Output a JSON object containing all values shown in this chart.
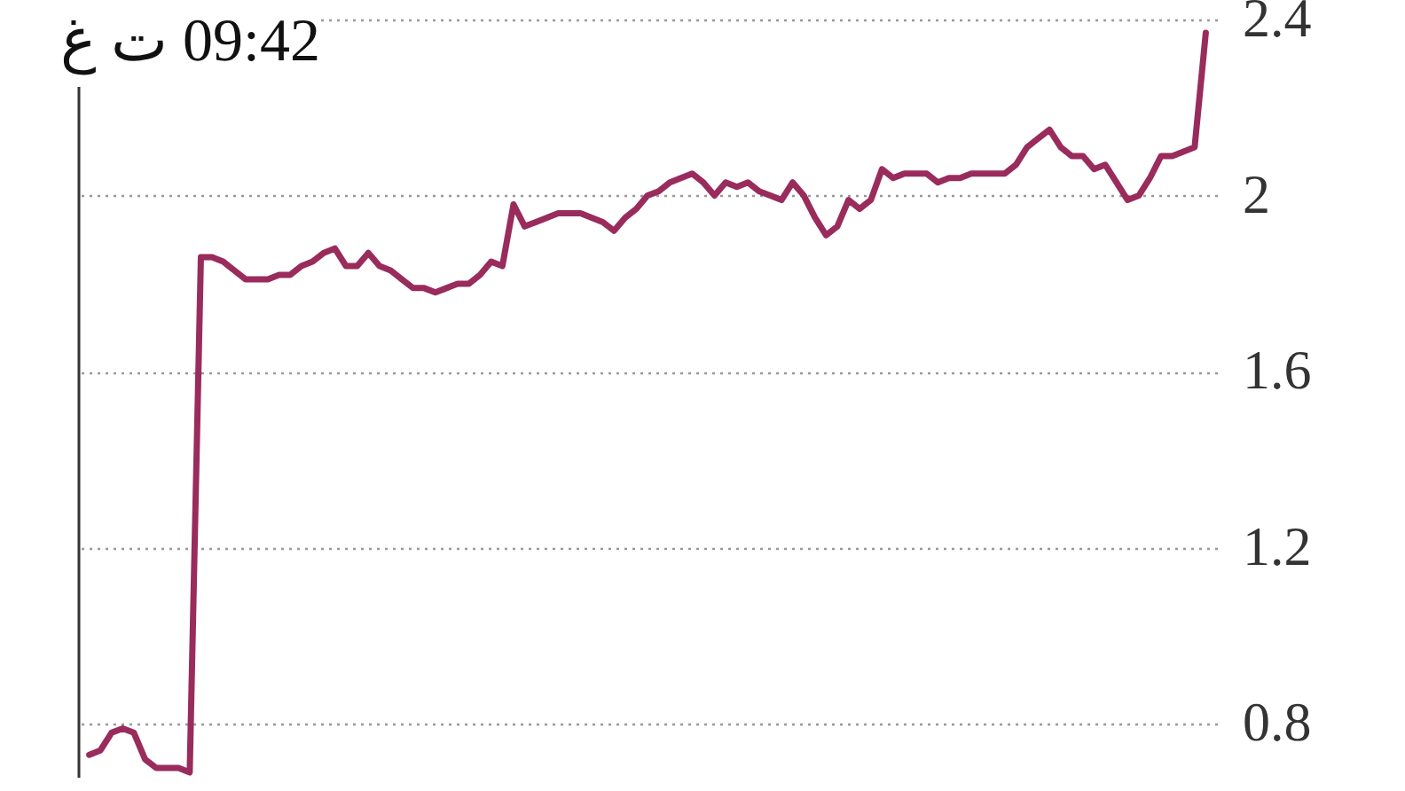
{
  "chart_data": {
    "type": "line",
    "annotations": [
      "09:42 ت غ"
    ],
    "categories": [
      null,
      null,
      null,
      null,
      null,
      null,
      null,
      null,
      null,
      null,
      null,
      null,
      null,
      null,
      null,
      null,
      null,
      null,
      null,
      null,
      null,
      null,
      null,
      null,
      null,
      null,
      null,
      null,
      null,
      null,
      null,
      null,
      null,
      null,
      null,
      null,
      null,
      null,
      null,
      null,
      null,
      null,
      null,
      null,
      null,
      null,
      null,
      null,
      null,
      null,
      null,
      null,
      null,
      null,
      null,
      null,
      null,
      null,
      null,
      null,
      null,
      null,
      null,
      null,
      null,
      null,
      null,
      null,
      null,
      null,
      null,
      null,
      null,
      null,
      null,
      null,
      null,
      null,
      null,
      null,
      null,
      null,
      null,
      null,
      null,
      null,
      null,
      null,
      null,
      null,
      null,
      null,
      null,
      null,
      null,
      null,
      null,
      null,
      null,
      null,
      null
    ],
    "values": [
      0.73,
      0.74,
      0.78,
      0.79,
      0.78,
      0.72,
      0.7,
      0.7,
      0.7,
      0.69,
      1.86,
      1.86,
      1.85,
      1.83,
      1.81,
      1.81,
      1.81,
      1.82,
      1.82,
      1.84,
      1.85,
      1.87,
      1.88,
      1.84,
      1.84,
      1.87,
      1.84,
      1.83,
      1.81,
      1.79,
      1.79,
      1.78,
      1.79,
      1.8,
      1.8,
      1.82,
      1.85,
      1.84,
      1.98,
      1.93,
      1.94,
      1.95,
      1.96,
      1.96,
      1.96,
      1.95,
      1.94,
      1.92,
      1.95,
      1.97,
      2.0,
      2.01,
      2.03,
      2.04,
      2.05,
      2.03,
      2.0,
      2.03,
      2.02,
      2.03,
      2.01,
      2.0,
      1.99,
      2.03,
      2.0,
      1.95,
      1.91,
      1.93,
      1.99,
      1.97,
      1.99,
      2.06,
      2.04,
      2.05,
      2.05,
      2.05,
      2.03,
      2.04,
      2.04,
      2.05,
      2.05,
      2.05,
      2.05,
      2.07,
      2.11,
      2.13,
      2.15,
      2.11,
      2.09,
      2.09,
      2.06,
      2.07,
      2.03,
      1.99,
      2.0,
      2.04,
      2.09,
      2.09,
      2.1,
      2.11,
      2.37
    ],
    "color": "#992c5c",
    "ylim": [
      0.68,
      2.4
    ],
    "yticks": [
      0.8,
      1.2,
      1.6,
      2,
      2.4
    ],
    "grid": "y",
    "tick_labels": "y"
  }
}
